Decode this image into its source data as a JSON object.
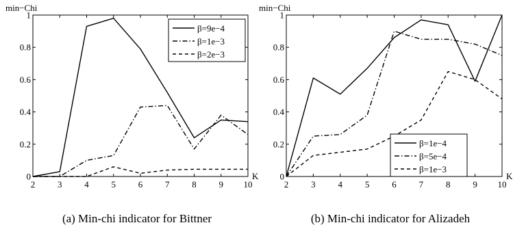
{
  "figure": {
    "caption_a": "(a) Min-chi indicator for Bittner",
    "caption_b": "(b) Min-chi indicator for Alizadeh"
  },
  "chart_data": [
    {
      "type": "line",
      "title": "",
      "xlabel": "K",
      "ylabel": "min−Chi",
      "xlim": [
        2,
        10
      ],
      "ylim": [
        0,
        1
      ],
      "x_ticks": [
        2,
        3,
        4,
        5,
        6,
        7,
        8,
        9,
        10
      ],
      "y_ticks": [
        0,
        0.2,
        0.4,
        0.6,
        0.8,
        1
      ],
      "y_tick_labels": [
        "0",
        "0.2",
        "0.4",
        "0.6",
        "0.8",
        "1"
      ],
      "grid": false,
      "legend_position": "top-right",
      "x": [
        2,
        3,
        4,
        5,
        6,
        7,
        8,
        9,
        10
      ],
      "series": [
        {
          "name": "β=9e−4",
          "style": "solid",
          "values": [
            0,
            0.03,
            0.93,
            0.98,
            0.79,
            0.52,
            0.24,
            0.35,
            0.34
          ]
        },
        {
          "name": "β=1e−3",
          "style": "dashdot",
          "values": [
            0,
            0,
            0.1,
            0.13,
            0.43,
            0.44,
            0.17,
            0.38,
            0.26
          ]
        },
        {
          "name": "β=2e−3",
          "style": "dashed",
          "values": [
            0,
            0,
            0,
            0.06,
            0.02,
            0.04,
            0.045,
            0.045,
            0.045
          ]
        }
      ]
    },
    {
      "type": "line",
      "title": "",
      "xlabel": "K",
      "ylabel": "min−Chi",
      "xlim": [
        2,
        10
      ],
      "ylim": [
        0,
        1
      ],
      "x_ticks": [
        2,
        3,
        4,
        5,
        6,
        7,
        8,
        9,
        10
      ],
      "y_ticks": [
        0,
        0.2,
        0.4,
        0.6,
        0.8,
        1
      ],
      "y_tick_labels": [
        "0",
        "0.2",
        "0.4",
        "0.6",
        "0.8",
        "1"
      ],
      "grid": false,
      "legend_position": "bottom-right",
      "x": [
        2,
        3,
        4,
        5,
        6,
        7,
        8,
        9,
        10
      ],
      "series": [
        {
          "name": "β=1e−4",
          "style": "solid",
          "values": [
            0,
            0.61,
            0.51,
            0.67,
            0.86,
            0.97,
            0.94,
            0.59,
            1.0
          ]
        },
        {
          "name": "β=5e−4",
          "style": "dashdot",
          "values": [
            0,
            0.25,
            0.26,
            0.38,
            0.9,
            0.85,
            0.85,
            0.82,
            0.75
          ]
        },
        {
          "name": "β=1e−3",
          "style": "dashed",
          "values": [
            0,
            0.13,
            0.15,
            0.17,
            0.25,
            0.35,
            0.65,
            0.6,
            0.48
          ]
        }
      ]
    }
  ]
}
